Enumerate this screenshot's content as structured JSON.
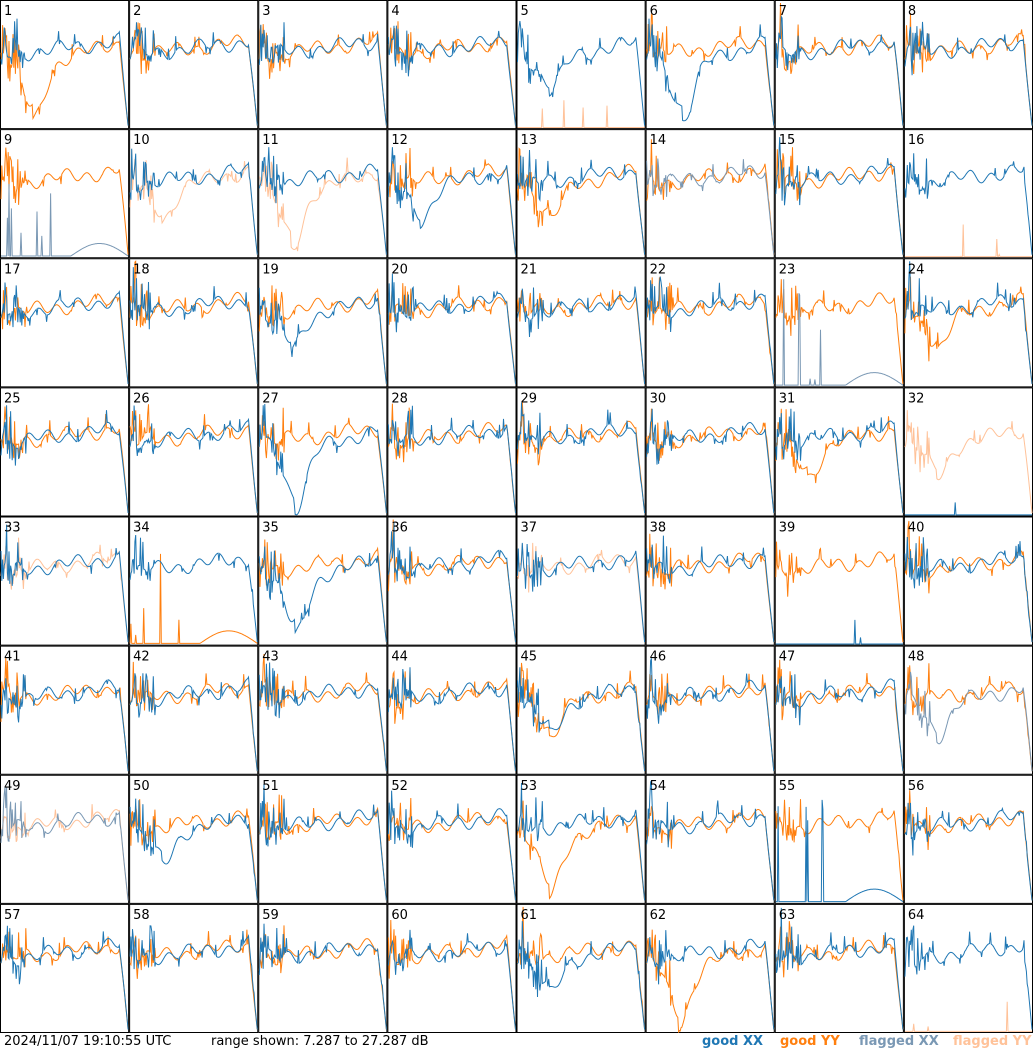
{
  "footer": {
    "timestamp": "2024/11/07 19:10:55 UTC",
    "range_text": "range shown: 7.287 to 27.287 dB"
  },
  "colors": {
    "good_xx": "#1f77b4",
    "good_yy": "#ff7f0e",
    "flagged_xx": "#7a98b4",
    "flagged_yy": "#ffc299"
  },
  "chart_data": {
    "type": "line",
    "grid": {
      "rows": 8,
      "cols": 8
    },
    "ylim": [
      7.287,
      27.287
    ],
    "yunit": "dB",
    "legend": {
      "placement": "bottom-right",
      "entries": [
        {
          "status": "good",
          "pol": "XX"
        },
        {
          "status": "good",
          "pol": "YY"
        },
        {
          "status": "flagged",
          "pol": "XX"
        },
        {
          "status": "flagged",
          "pol": "YY"
        }
      ]
    },
    "panels": [
      {
        "label": "1",
        "xx": {
          "flag": false,
          "shape": "normal"
        },
        "yy": {
          "flag": false,
          "shape": "dip-deep"
        }
      },
      {
        "label": "2",
        "xx": {
          "flag": false,
          "shape": "normal"
        },
        "yy": {
          "flag": false,
          "shape": "normal"
        }
      },
      {
        "label": "3",
        "xx": {
          "flag": false,
          "shape": "normal"
        },
        "yy": {
          "flag": false,
          "shape": "normal"
        }
      },
      {
        "label": "4",
        "xx": {
          "flag": false,
          "shape": "normal"
        },
        "yy": {
          "flag": false,
          "shape": "normal"
        }
      },
      {
        "label": "5",
        "xx": {
          "flag": false,
          "shape": "dip"
        },
        "yy": {
          "flag": true,
          "shape": "dead"
        }
      },
      {
        "label": "6",
        "xx": {
          "flag": false,
          "shape": "deep-dip"
        },
        "yy": {
          "flag": false,
          "shape": "normal"
        }
      },
      {
        "label": "7",
        "xx": {
          "flag": false,
          "shape": "normal"
        },
        "yy": {
          "flag": false,
          "shape": "normal"
        }
      },
      {
        "label": "8",
        "xx": {
          "flag": false,
          "shape": "normal"
        },
        "yy": {
          "flag": false,
          "shape": "normal"
        }
      },
      {
        "label": "9",
        "xx": {
          "flag": true,
          "shape": "dead-spikes"
        },
        "yy": {
          "flag": false,
          "shape": "normal"
        }
      },
      {
        "label": "10",
        "xx": {
          "flag": false,
          "shape": "normal"
        },
        "yy": {
          "flag": true,
          "shape": "dip"
        }
      },
      {
        "label": "11",
        "xx": {
          "flag": false,
          "shape": "normal"
        },
        "yy": {
          "flag": true,
          "shape": "dip-deep"
        }
      },
      {
        "label": "12",
        "xx": {
          "flag": false,
          "shape": "dip"
        },
        "yy": {
          "flag": false,
          "shape": "normal"
        }
      },
      {
        "label": "13",
        "xx": {
          "flag": false,
          "shape": "normal"
        },
        "yy": {
          "flag": false,
          "shape": "dip"
        }
      },
      {
        "label": "14",
        "xx": {
          "flag": true,
          "shape": "normal"
        },
        "yy": {
          "flag": false,
          "shape": "normal"
        }
      },
      {
        "label": "15",
        "xx": {
          "flag": false,
          "shape": "normal"
        },
        "yy": {
          "flag": false,
          "shape": "normal"
        }
      },
      {
        "label": "16",
        "xx": {
          "flag": false,
          "shape": "normal"
        },
        "yy": {
          "flag": true,
          "shape": "dead"
        }
      },
      {
        "label": "17",
        "xx": {
          "flag": false,
          "shape": "normal"
        },
        "yy": {
          "flag": false,
          "shape": "normal"
        }
      },
      {
        "label": "18",
        "xx": {
          "flag": false,
          "shape": "normal"
        },
        "yy": {
          "flag": false,
          "shape": "normal"
        }
      },
      {
        "label": "19",
        "xx": {
          "flag": false,
          "shape": "dip"
        },
        "yy": {
          "flag": false,
          "shape": "normal"
        }
      },
      {
        "label": "20",
        "xx": {
          "flag": false,
          "shape": "normal"
        },
        "yy": {
          "flag": false,
          "shape": "normal"
        }
      },
      {
        "label": "21",
        "xx": {
          "flag": false,
          "shape": "normal"
        },
        "yy": {
          "flag": false,
          "shape": "normal"
        }
      },
      {
        "label": "22",
        "xx": {
          "flag": false,
          "shape": "normal"
        },
        "yy": {
          "flag": false,
          "shape": "normal"
        }
      },
      {
        "label": "23",
        "xx": {
          "flag": true,
          "shape": "dead-spikes"
        },
        "yy": {
          "flag": false,
          "shape": "normal"
        }
      },
      {
        "label": "24",
        "xx": {
          "flag": false,
          "shape": "normal"
        },
        "yy": {
          "flag": false,
          "shape": "dip"
        }
      },
      {
        "label": "25",
        "xx": {
          "flag": false,
          "shape": "normal"
        },
        "yy": {
          "flag": false,
          "shape": "normal"
        }
      },
      {
        "label": "26",
        "xx": {
          "flag": false,
          "shape": "normal"
        },
        "yy": {
          "flag": false,
          "shape": "normal"
        }
      },
      {
        "label": "27",
        "xx": {
          "flag": false,
          "shape": "deep-dip"
        },
        "yy": {
          "flag": false,
          "shape": "normal"
        }
      },
      {
        "label": "28",
        "xx": {
          "flag": false,
          "shape": "normal"
        },
        "yy": {
          "flag": false,
          "shape": "normal"
        }
      },
      {
        "label": "29",
        "xx": {
          "flag": false,
          "shape": "normal"
        },
        "yy": {
          "flag": false,
          "shape": "normal"
        }
      },
      {
        "label": "30",
        "xx": {
          "flag": false,
          "shape": "normal"
        },
        "yy": {
          "flag": false,
          "shape": "normal"
        }
      },
      {
        "label": "31",
        "xx": {
          "flag": false,
          "shape": "normal"
        },
        "yy": {
          "flag": false,
          "shape": "dip"
        }
      },
      {
        "label": "32",
        "xx": {
          "flag": false,
          "shape": "dead"
        },
        "yy": {
          "flag": true,
          "shape": "dip"
        }
      },
      {
        "label": "33",
        "xx": {
          "flag": false,
          "shape": "normal"
        },
        "yy": {
          "flag": true,
          "shape": "normal"
        }
      },
      {
        "label": "34",
        "xx": {
          "flag": false,
          "shape": "normal"
        },
        "yy": {
          "flag": false,
          "shape": "dead-spikes"
        }
      },
      {
        "label": "35",
        "xx": {
          "flag": false,
          "shape": "deep-dip"
        },
        "yy": {
          "flag": false,
          "shape": "normal"
        }
      },
      {
        "label": "36",
        "xx": {
          "flag": false,
          "shape": "normal"
        },
        "yy": {
          "flag": false,
          "shape": "normal"
        }
      },
      {
        "label": "37",
        "xx": {
          "flag": false,
          "shape": "normal"
        },
        "yy": {
          "flag": true,
          "shape": "normal"
        }
      },
      {
        "label": "38",
        "xx": {
          "flag": false,
          "shape": "normal"
        },
        "yy": {
          "flag": false,
          "shape": "normal"
        }
      },
      {
        "label": "39",
        "xx": {
          "flag": false,
          "shape": "dead"
        },
        "yy": {
          "flag": false,
          "shape": "normal"
        }
      },
      {
        "label": "40",
        "xx": {
          "flag": false,
          "shape": "normal"
        },
        "yy": {
          "flag": false,
          "shape": "normal"
        }
      },
      {
        "label": "41",
        "xx": {
          "flag": false,
          "shape": "normal"
        },
        "yy": {
          "flag": false,
          "shape": "normal"
        }
      },
      {
        "label": "42",
        "xx": {
          "flag": false,
          "shape": "normal"
        },
        "yy": {
          "flag": false,
          "shape": "normal"
        }
      },
      {
        "label": "43",
        "xx": {
          "flag": false,
          "shape": "normal"
        },
        "yy": {
          "flag": false,
          "shape": "normal"
        }
      },
      {
        "label": "44",
        "xx": {
          "flag": false,
          "shape": "normal"
        },
        "yy": {
          "flag": false,
          "shape": "normal"
        }
      },
      {
        "label": "45",
        "xx": {
          "flag": false,
          "shape": "dip"
        },
        "yy": {
          "flag": false,
          "shape": "dip"
        }
      },
      {
        "label": "46",
        "xx": {
          "flag": false,
          "shape": "normal"
        },
        "yy": {
          "flag": false,
          "shape": "normal"
        }
      },
      {
        "label": "47",
        "xx": {
          "flag": false,
          "shape": "normal"
        },
        "yy": {
          "flag": false,
          "shape": "normal"
        }
      },
      {
        "label": "48",
        "xx": {
          "flag": true,
          "shape": "dip"
        },
        "yy": {
          "flag": false,
          "shape": "normal"
        }
      },
      {
        "label": "49",
        "xx": {
          "flag": true,
          "shape": "normal"
        },
        "yy": {
          "flag": true,
          "shape": "normal"
        }
      },
      {
        "label": "50",
        "xx": {
          "flag": false,
          "shape": "dip"
        },
        "yy": {
          "flag": false,
          "shape": "normal"
        }
      },
      {
        "label": "51",
        "xx": {
          "flag": false,
          "shape": "normal"
        },
        "yy": {
          "flag": false,
          "shape": "normal"
        }
      },
      {
        "label": "52",
        "xx": {
          "flag": false,
          "shape": "normal"
        },
        "yy": {
          "flag": false,
          "shape": "normal"
        }
      },
      {
        "label": "53",
        "xx": {
          "flag": false,
          "shape": "normal"
        },
        "yy": {
          "flag": false,
          "shape": "dip-deep"
        }
      },
      {
        "label": "54",
        "xx": {
          "flag": false,
          "shape": "normal"
        },
        "yy": {
          "flag": false,
          "shape": "normal"
        }
      },
      {
        "label": "55",
        "xx": {
          "flag": false,
          "shape": "dead-spikes"
        },
        "yy": {
          "flag": false,
          "shape": "normal"
        }
      },
      {
        "label": "56",
        "xx": {
          "flag": false,
          "shape": "normal"
        },
        "yy": {
          "flag": false,
          "shape": "normal"
        }
      },
      {
        "label": "57",
        "xx": {
          "flag": false,
          "shape": "normal"
        },
        "yy": {
          "flag": false,
          "shape": "normal"
        }
      },
      {
        "label": "58",
        "xx": {
          "flag": false,
          "shape": "normal"
        },
        "yy": {
          "flag": false,
          "shape": "normal"
        }
      },
      {
        "label": "59",
        "xx": {
          "flag": false,
          "shape": "normal"
        },
        "yy": {
          "flag": false,
          "shape": "normal"
        }
      },
      {
        "label": "60",
        "xx": {
          "flag": false,
          "shape": "normal"
        },
        "yy": {
          "flag": false,
          "shape": "normal"
        }
      },
      {
        "label": "61",
        "xx": {
          "flag": false,
          "shape": "dip"
        },
        "yy": {
          "flag": false,
          "shape": "normal"
        }
      },
      {
        "label": "62",
        "xx": {
          "flag": false,
          "shape": "normal"
        },
        "yy": {
          "flag": false,
          "shape": "dip-deep"
        }
      },
      {
        "label": "63",
        "xx": {
          "flag": false,
          "shape": "normal"
        },
        "yy": {
          "flag": false,
          "shape": "normal"
        }
      },
      {
        "label": "64",
        "xx": {
          "flag": false,
          "shape": "normal"
        },
        "yy": {
          "flag": true,
          "shape": "dead"
        }
      }
    ]
  }
}
